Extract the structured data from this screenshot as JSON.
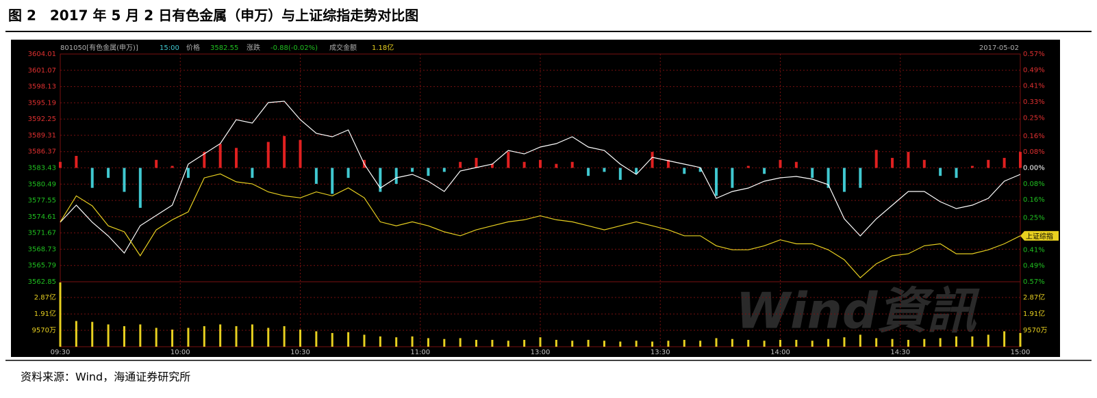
{
  "title": "图 2　2017 年 5 月 2 日有色金属（申万）与上证综指走势对比图",
  "source": "资料来源：Wind，海通证券研究所",
  "chart_data": {
    "type": "line",
    "header": {
      "code": "801050[有色金属(申万)]",
      "time": "15:00",
      "price_label": "价格",
      "price": "3582.55",
      "change_label": "涨跌",
      "change": "-0.88(-0.02%)",
      "amount_label": "成交金额",
      "amount": "1.18亿",
      "date": "2017-05-02"
    },
    "watermark": "Wind資訊",
    "x": [
      0,
      4,
      8,
      12,
      16,
      20,
      24,
      28,
      32,
      36,
      40,
      44,
      48,
      52,
      56,
      60,
      64,
      68,
      72,
      76,
      80,
      84,
      88,
      92,
      96,
      100,
      104,
      108,
      112,
      116,
      120,
      124,
      128,
      132,
      136,
      140,
      144,
      148,
      152,
      156,
      160,
      164,
      168,
      172,
      176,
      180,
      184,
      188,
      192,
      196,
      200,
      204,
      208,
      212,
      216,
      220,
      224,
      228,
      232,
      236,
      240
    ],
    "xlim": [
      0,
      240
    ],
    "xticks": [
      {
        "value": 0,
        "label": "09:30"
      },
      {
        "value": 30,
        "label": "10:00"
      },
      {
        "value": 60,
        "label": "10:30"
      },
      {
        "value": 90,
        "label": "11:00"
      },
      {
        "value": 120,
        "label": "13:00"
      },
      {
        "value": 150,
        "label": "13:30"
      },
      {
        "value": 180,
        "label": "14:00"
      },
      {
        "value": 210,
        "label": "14:30"
      },
      {
        "value": 240,
        "label": "15:00"
      }
    ],
    "ylim": [
      3562.85,
      3604.01
    ],
    "yticks": [
      3604.01,
      3601.07,
      3598.13,
      3595.19,
      3592.25,
      3589.31,
      3586.37,
      3583.43,
      3580.49,
      3577.55,
      3574.61,
      3571.67,
      3568.73,
      3565.79,
      3562.85
    ],
    "y2lim": [
      -0.57,
      0.57
    ],
    "y2ticks": [
      {
        "value": 0.57,
        "label": "0.57%"
      },
      {
        "value": 0.49,
        "label": "0.49%"
      },
      {
        "value": 0.41,
        "label": "0.41%"
      },
      {
        "value": 0.33,
        "label": "0.33%"
      },
      {
        "value": 0.25,
        "label": "0.25%"
      },
      {
        "value": 0.16,
        "label": "0.16%"
      },
      {
        "value": 0.08,
        "label": "0.08%"
      },
      {
        "value": 0,
        "label": "0.00%"
      },
      {
        "value": -0.08,
        "label": "0.08%"
      },
      {
        "value": -0.16,
        "label": "0.16%"
      },
      {
        "value": -0.25,
        "label": "0.25%"
      },
      {
        "value": -0.33,
        "label": "0.33%"
      },
      {
        "value": -0.41,
        "label": "0.41%"
      },
      {
        "value": -0.49,
        "label": "0.49%"
      },
      {
        "value": -0.57,
        "label": "0.57%"
      }
    ],
    "grid": true,
    "up_color": "#e03030",
    "down_color": "#20c020",
    "grid_color": "#7a1010",
    "series": [
      {
        "color": "#ffffff",
        "values": [
          3573.6,
          3576.69,
          3573.6,
          3571.13,
          3568.04,
          3572.98,
          3574.84,
          3576.69,
          3584.11,
          3585.96,
          3587.82,
          3592.14,
          3591.53,
          3595.23,
          3595.48,
          3592.14,
          3589.67,
          3589.05,
          3590.29,
          3584.11,
          3579.78,
          3581.64,
          3582.25,
          3581.02,
          3579.16,
          3582.87,
          3583.49,
          3584.11,
          3586.58,
          3585.96,
          3587.2,
          3587.82,
          3589.05,
          3587.2,
          3586.58,
          3584.11,
          3582.25,
          3585.34,
          3584.73,
          3584.11,
          3583.49,
          3577.93,
          3579.16,
          3579.78,
          3581.02,
          3581.64,
          3581.88,
          3581.39,
          3580.4,
          3574.22,
          3571.13,
          3574.22,
          3576.69,
          3579.16,
          3579.16,
          3577.31,
          3576.07,
          3576.69,
          3577.93,
          3581.02,
          3582.25
        ]
      },
      {
        "name": "上证综指",
        "color": "#e8d020",
        "axis": "y2",
        "values": [
          -0.27,
          -0.14,
          -0.19,
          -0.29,
          -0.32,
          -0.44,
          -0.31,
          -0.26,
          -0.22,
          -0.05,
          -0.03,
          -0.07,
          -0.08,
          -0.12,
          -0.14,
          -0.15,
          -0.12,
          -0.14,
          -0.1,
          -0.15,
          -0.27,
          -0.29,
          -0.27,
          -0.29,
          -0.32,
          -0.34,
          -0.31,
          -0.29,
          -0.27,
          -0.26,
          -0.24,
          -0.26,
          -0.27,
          -0.29,
          -0.31,
          -0.29,
          -0.27,
          -0.29,
          -0.31,
          -0.34,
          -0.34,
          -0.39,
          -0.41,
          -0.41,
          -0.39,
          -0.36,
          -0.38,
          -0.38,
          -0.41,
          -0.46,
          -0.55,
          -0.48,
          -0.44,
          -0.43,
          -0.39,
          -0.38,
          -0.43,
          -0.43,
          -0.41,
          -0.38,
          -0.34
        ]
      }
    ],
    "bars": {
      "axis": "y2",
      "up_color": "#e02020",
      "down_color": "#40c8d0",
      "values": [
        0.03,
        0.06,
        -0.1,
        -0.05,
        -0.12,
        -0.2,
        0.04,
        0.01,
        -0.05,
        0.08,
        0.12,
        0.1,
        -0.05,
        0.13,
        0.16,
        0.14,
        -0.08,
        -0.13,
        -0.05,
        0.04,
        -0.12,
        -0.08,
        -0.02,
        -0.04,
        -0.02,
        0.03,
        0.05,
        0.02,
        0.08,
        0.03,
        0.04,
        0.02,
        0.03,
        -0.04,
        -0.02,
        -0.06,
        -0.03,
        0.08,
        0.04,
        -0.03,
        -0.02,
        -0.14,
        -0.1,
        0.01,
        -0.03,
        0.04,
        0.03,
        -0.05,
        -0.1,
        -0.12,
        -0.1,
        0.09,
        0.05,
        0.08,
        0.04,
        -0.04,
        -0.05,
        0.01,
        0.04,
        0.05,
        0.08
      ]
    },
    "volume": {
      "color": "#e8d020",
      "ylim": [
        0,
        3.79
      ],
      "yticks": [
        {
          "value": 2.87,
          "label": "2.87亿"
        },
        {
          "value": 1.91,
          "label": "1.91亿"
        },
        {
          "value": 0.957,
          "label": "9570万"
        }
      ],
      "values": [
        3.75,
        1.5,
        1.45,
        1.3,
        1.2,
        1.3,
        1.1,
        1.0,
        1.1,
        1.2,
        1.3,
        1.2,
        1.3,
        1.1,
        1.2,
        1.0,
        0.9,
        0.8,
        0.85,
        0.7,
        0.6,
        0.55,
        0.6,
        0.5,
        0.45,
        0.5,
        0.4,
        0.4,
        0.35,
        0.4,
        0.55,
        0.4,
        0.35,
        0.4,
        0.35,
        0.3,
        0.35,
        0.3,
        0.35,
        0.4,
        0.35,
        0.5,
        0.45,
        0.4,
        0.35,
        0.4,
        0.4,
        0.35,
        0.45,
        0.55,
        0.7,
        0.5,
        0.45,
        0.4,
        0.45,
        0.5,
        0.6,
        0.6,
        0.7,
        0.9,
        0.8
      ]
    }
  }
}
